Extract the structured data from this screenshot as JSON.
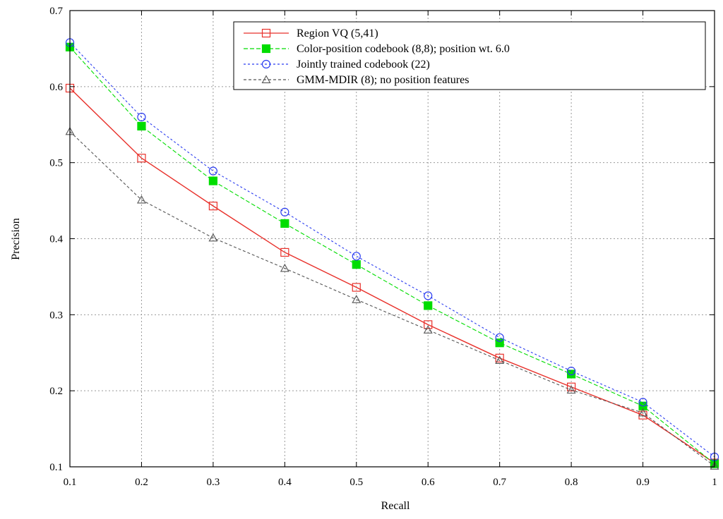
{
  "chart_data": {
    "type": "line",
    "title": "",
    "xlabel": "Recall",
    "ylabel": "Precision",
    "xlim": [
      0.1,
      1.0
    ],
    "ylim": [
      0.1,
      0.7
    ],
    "x_ticks": [
      "0.1",
      "0.2",
      "0.3",
      "0.4",
      "0.5",
      "0.6",
      "0.7",
      "0.8",
      "0.9",
      "1"
    ],
    "y_ticks": [
      "0.1",
      "0.2",
      "0.3",
      "0.4",
      "0.5",
      "0.6",
      "0.7"
    ],
    "grid": true,
    "legend_position": "top-right",
    "x": [
      0.1,
      0.2,
      0.3,
      0.4,
      0.5,
      0.6,
      0.7,
      0.8,
      0.9,
      1.0
    ],
    "series": [
      {
        "name": "Region VQ (5,41)",
        "color": "#e8302a",
        "marker": "open-square",
        "dash": "solid",
        "values": [
          0.598,
          0.506,
          0.443,
          0.382,
          0.336,
          0.287,
          0.243,
          0.205,
          0.168,
          0.105
        ]
      },
      {
        "name": "Color-position codebook (8,8); position wt. 6.0",
        "color": "#00dd00",
        "marker": "filled-square",
        "dash": "dashed",
        "values": [
          0.652,
          0.548,
          0.476,
          0.42,
          0.366,
          0.312,
          0.263,
          0.222,
          0.18,
          0.104
        ]
      },
      {
        "name": "Jointly trained codebook (22)",
        "color": "#2a3cf0",
        "marker": "open-circle",
        "dash": "dotted",
        "values": [
          0.658,
          0.56,
          0.489,
          0.435,
          0.377,
          0.325,
          0.27,
          0.226,
          0.185,
          0.113
        ]
      },
      {
        "name": "GMM-MDIR (8); no position features",
        "color": "#555555",
        "marker": "open-triangle",
        "dash": "dashdot",
        "values": [
          0.541,
          0.451,
          0.401,
          0.361,
          0.32,
          0.28,
          0.24,
          0.201,
          0.171,
          0.101
        ]
      }
    ]
  }
}
